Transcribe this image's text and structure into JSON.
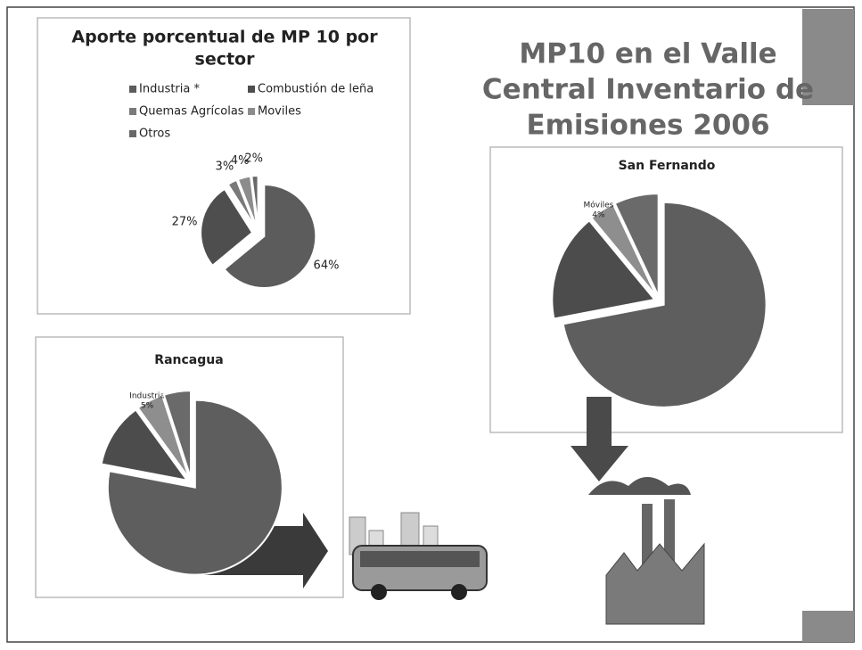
{
  "slide": {
    "title": [
      "MP10 en el Valle",
      "Central Inventario de",
      "Emisiones 2006"
    ]
  },
  "chart_data": [
    {
      "type": "pie",
      "title": [
        "Aporte porcentual de MP 10 por",
        "sector"
      ],
      "categories": [
        "Industria *",
        "Combustión de leña",
        "Quemas Agrícolas",
        "Moviles",
        "Otros"
      ],
      "values": [
        64,
        27,
        3,
        4,
        2
      ],
      "value_labels": [
        "64%",
        "27%",
        "3%",
        "4%",
        "2%"
      ],
      "colors": [
        "#5c5c5c",
        "#4e4e4e",
        "#7a7a7a",
        "#8c8c8c",
        "#686868"
      ],
      "legend": "top"
    },
    {
      "type": "pie",
      "title": "San Fernando",
      "categories": [
        null,
        null,
        "Móviles",
        null
      ],
      "values": [
        72,
        17,
        4,
        7
      ],
      "value_labels": [
        null,
        null,
        "4%",
        null
      ],
      "colors": [
        "#5e5e5e",
        "#4c4c4c",
        "#8e8e8e",
        "#6a6a6a"
      ]
    },
    {
      "type": "pie",
      "title": "Rancagua",
      "categories": [
        null,
        null,
        "Industria",
        null
      ],
      "values": [
        78,
        12,
        5,
        5
      ],
      "value_labels": [
        null,
        null,
        "5%",
        null
      ],
      "colors": [
        "#5e5e5e",
        "#4c4c4c",
        "#8e8e8e",
        "#6a6a6a"
      ]
    }
  ]
}
